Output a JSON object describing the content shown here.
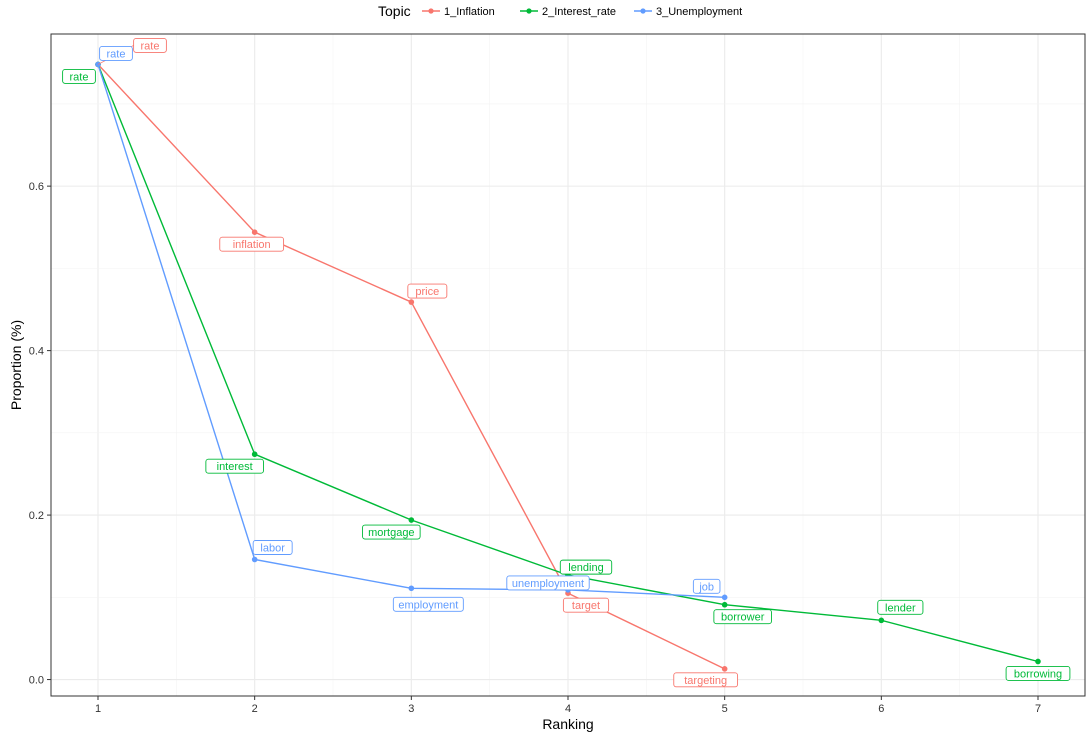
{
  "chart_data": {
    "type": "line",
    "title": "",
    "xlabel": "Ranking",
    "ylabel": "Proportion (%)",
    "xlim": [
      0.7,
      7.3
    ],
    "ylim": [
      -0.02,
      0.785
    ],
    "x_ticks": [
      1,
      2,
      3,
      4,
      5,
      6,
      7
    ],
    "y_ticks": [
      0.0,
      0.2,
      0.4,
      0.6
    ],
    "y_tick_labels": [
      "0.0",
      "0.2",
      "0.4",
      "0.6"
    ],
    "grid": true,
    "legend": {
      "title": "Topic",
      "placement": "top"
    },
    "series": [
      {
        "name": "1_Inflation",
        "color": "#F8766D",
        "points": [
          {
            "x": 1,
            "y": 0.748,
            "label": "rate"
          },
          {
            "x": 2,
            "y": 0.544,
            "label": "inflation"
          },
          {
            "x": 3,
            "y": 0.459,
            "label": "price"
          },
          {
            "x": 4,
            "y": 0.105,
            "label": "target"
          },
          {
            "x": 5,
            "y": 0.013,
            "label": "targeting"
          }
        ]
      },
      {
        "name": "2_Interest_rate",
        "color": "#00BA38",
        "points": [
          {
            "x": 1,
            "y": 0.748,
            "label": "rate"
          },
          {
            "x": 2,
            "y": 0.274,
            "label": "interest"
          },
          {
            "x": 3,
            "y": 0.194,
            "label": "mortgage"
          },
          {
            "x": 4,
            "y": 0.127,
            "label": "lending"
          },
          {
            "x": 5,
            "y": 0.091,
            "label": "borrower"
          },
          {
            "x": 6,
            "y": 0.072,
            "label": "lender"
          },
          {
            "x": 7,
            "y": 0.022,
            "label": "borrowing"
          }
        ]
      },
      {
        "name": "3_Unemployment",
        "color": "#619CFF",
        "points": [
          {
            "x": 1,
            "y": 0.748,
            "label": "rate"
          },
          {
            "x": 2,
            "y": 0.146,
            "label": "labor"
          },
          {
            "x": 3,
            "y": 0.111,
            "label": "employment"
          },
          {
            "x": 4,
            "y": 0.109,
            "label": "unemployment"
          },
          {
            "x": 5,
            "y": 0.1,
            "label": "job"
          }
        ]
      }
    ]
  }
}
